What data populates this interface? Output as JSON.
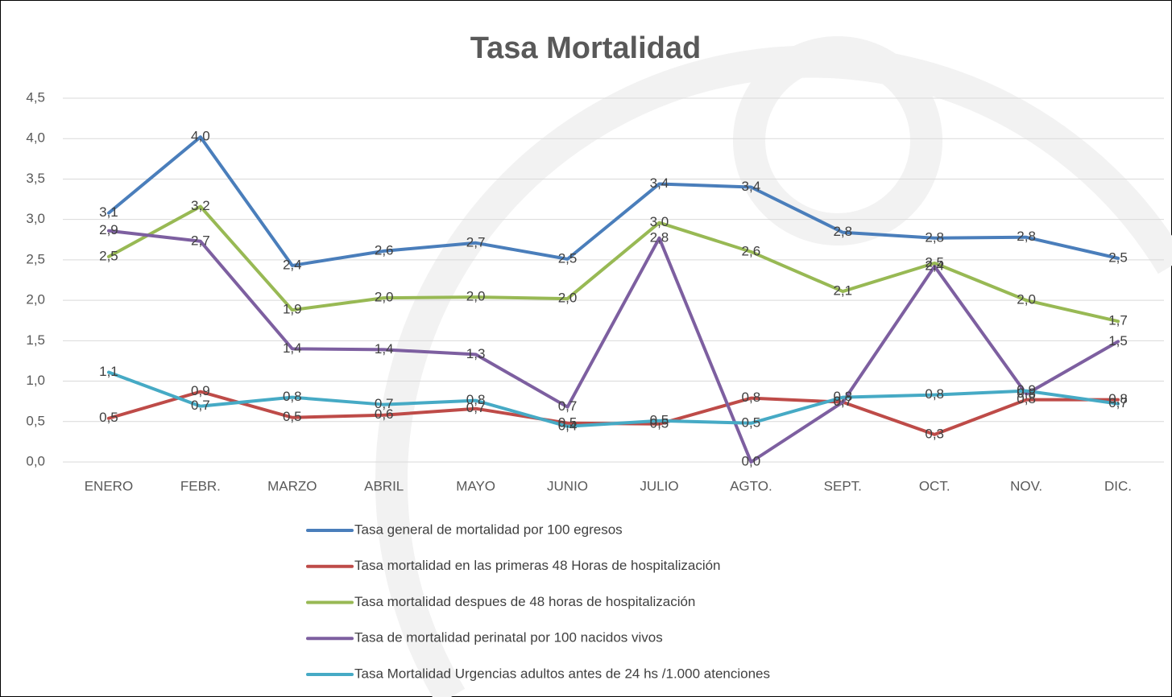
{
  "chart_data": {
    "type": "line",
    "title": "Tasa Mortalidad",
    "categories": [
      "ENERO",
      "FEBR.",
      "MARZO",
      "ABRIL",
      "MAYO",
      "JUNIO",
      "JULIO",
      "AGTO.",
      "SEPT.",
      "OCT.",
      "NOV.",
      "DIC."
    ],
    "ylim": [
      0,
      4.5
    ],
    "yticks": [
      {
        "value": 0,
        "label": "0,0"
      },
      {
        "value": 0.5,
        "label": "0,5"
      },
      {
        "value": 1,
        "label": "1,0"
      },
      {
        "value": 1.5,
        "label": "1,5"
      },
      {
        "value": 2,
        "label": "2,0"
      },
      {
        "value": 2.5,
        "label": "2,5"
      },
      {
        "value": 3,
        "label": "3,0"
      },
      {
        "value": 3.5,
        "label": "3,5"
      },
      {
        "value": 4,
        "label": "4,0"
      },
      {
        "value": 4.5,
        "label": "4,5"
      }
    ],
    "grid": true,
    "legend": "bottom",
    "series": [
      {
        "name": "Tasa general de mortalidad por 100 egresos",
        "color": "#4a7ebb",
        "values": [
          3.08,
          4.02,
          2.43,
          2.61,
          2.71,
          2.51,
          3.44,
          3.4,
          2.84,
          2.77,
          2.78,
          2.52
        ],
        "value_labels": [
          "3,1",
          "4,0",
          "2,4",
          "2,6",
          "2,7",
          "2,5",
          "3,4",
          "3,4",
          "2,8",
          "2,8",
          "2,8",
          "2,5"
        ]
      },
      {
        "name": "Tasa mortalidad en las  primeras 48 Horas de hospitalización",
        "color": "#be4b48",
        "values": [
          0.54,
          0.87,
          0.55,
          0.58,
          0.66,
          0.48,
          0.47,
          0.79,
          0.74,
          0.34,
          0.77,
          0.77
        ],
        "value_labels": [
          "0,5",
          "0,9",
          "0,5",
          "0,6",
          "0,7",
          "0,5",
          "0,5",
          "0,8",
          "0,7",
          "0,3",
          "0,8",
          "0,8"
        ]
      },
      {
        "name": "Tasa mortalidad despues de 48 horas de hospitalización",
        "color": "#98b954",
        "values": [
          2.54,
          3.16,
          1.88,
          2.03,
          2.04,
          2.02,
          2.96,
          2.6,
          2.11,
          2.46,
          2.0,
          1.74
        ],
        "value_labels": [
          "2,5",
          "3,2",
          "1,9",
          "2,0",
          "2,0",
          "2,0",
          "3,0",
          "2,6",
          "2,1",
          "2,5",
          "2,0",
          "1,7"
        ]
      },
      {
        "name": "Tasa de mortalidad perinatal por 100 nacidos vivos",
        "color": "#7d5fa0",
        "values": [
          2.86,
          2.73,
          1.4,
          1.39,
          1.33,
          0.68,
          2.77,
          0,
          0.74,
          2.42,
          0.84,
          1.49
        ],
        "value_labels": [
          "2,9",
          "2,7",
          "1,4",
          "1,4",
          "1,3",
          "0,7",
          "2,8",
          "0,0",
          "0,7",
          "2,4",
          "0,8",
          "1,5"
        ]
      },
      {
        "name": "Tasa Mortalidad Urgencias adultos antes de  24 hs /1.000 atenciones",
        "color": "#46aac5",
        "values": [
          1.11,
          0.69,
          0.8,
          0.71,
          0.76,
          0.44,
          0.51,
          0.48,
          0.8,
          0.83,
          0.88,
          0.72
        ],
        "value_labels": [
          "1,1",
          "0,7",
          "0,8",
          "0,7",
          "0,8",
          "0,4",
          "0,5",
          "0,5",
          "0,8",
          "0,8",
          "0,9",
          "0,7"
        ]
      }
    ]
  }
}
